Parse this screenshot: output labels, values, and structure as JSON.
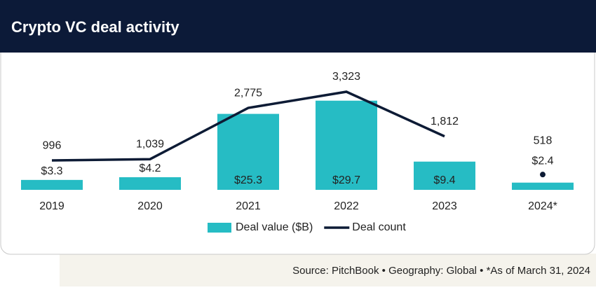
{
  "chart_data": {
    "type": "bar-line",
    "title": "Crypto VC deal activity",
    "categories": [
      "2019",
      "2020",
      "2021",
      "2022",
      "2023",
      "2024*"
    ],
    "series": [
      {
        "name": "Deal value ($B)",
        "type": "bar",
        "color": "#26bcc4",
        "values": [
          3.3,
          4.2,
          25.3,
          29.7,
          9.4,
          2.4
        ],
        "value_labels": [
          "$3.3",
          "$4.2",
          "$25.3",
          "$29.7",
          "$9.4",
          "$2.4"
        ]
      },
      {
        "name": "Deal count",
        "type": "line",
        "axis": "y2",
        "color": "#0d1b35",
        "values": [
          996,
          1039,
          2775,
          3323,
          1812,
          518
        ],
        "value_labels": [
          "996",
          "1,039",
          "2,775",
          "3,323",
          "1,812",
          "518"
        ]
      }
    ],
    "ylim": [
      0,
      35
    ],
    "y2lim": [
      0,
      3560
    ],
    "source": "Source: PitchBook  •  Geography: Global  •  *As of March 31, 2024"
  }
}
